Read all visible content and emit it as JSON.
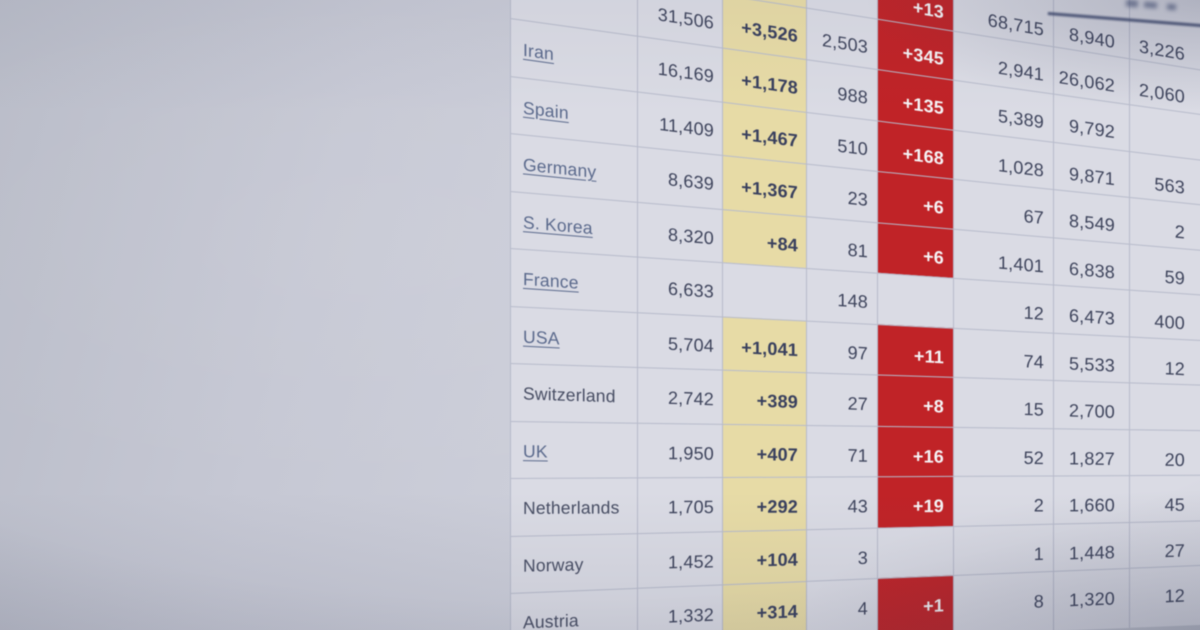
{
  "colors": {
    "page_bg": "#c6c8d3",
    "cell_bg": "#dadbe4",
    "grid": "#b7bbcb",
    "text": "#3e445c",
    "country_text": "#474d63",
    "link": "#5a698c",
    "highlight_yellow": "#e7dba6",
    "highlight_red": "#c02327",
    "red_text": "#f6f4f6"
  },
  "table": {
    "rows": [
      {
        "country": "",
        "total": "",
        "new_cases": "",
        "deaths": "",
        "new_deaths": "+13",
        "recovered": "68,715",
        "active": "8,940",
        "serious": "3,226",
        "new_cases_highlighted": true,
        "country_is_link": false
      },
      {
        "country": "",
        "total": "31,506",
        "new_cases": "+3,526",
        "deaths": "2,503",
        "new_deaths": "+345",
        "recovered": "2,941",
        "active": "26,062",
        "serious": "2,060",
        "new_cases_highlighted": true,
        "country_is_link": false
      },
      {
        "country": "Iran",
        "total": "16,169",
        "new_cases": "+1,178",
        "deaths": "988",
        "new_deaths": "+135",
        "recovered": "5,389",
        "active": "9,792",
        "serious": "",
        "new_cases_highlighted": true,
        "country_is_link": true
      },
      {
        "country": "Spain",
        "total": "11,409",
        "new_cases": "+1,467",
        "deaths": "510",
        "new_deaths": "+168",
        "recovered": "1,028",
        "active": "9,871",
        "serious": "563",
        "new_cases_highlighted": true,
        "country_is_link": true
      },
      {
        "country": "Germany",
        "total": "8,639",
        "new_cases": "+1,367",
        "deaths": "23",
        "new_deaths": "+6",
        "recovered": "67",
        "active": "8,549",
        "serious": "2",
        "new_cases_highlighted": true,
        "country_is_link": true
      },
      {
        "country": "S. Korea",
        "total": "8,320",
        "new_cases": "+84",
        "deaths": "81",
        "new_deaths": "+6",
        "recovered": "1,401",
        "active": "6,838",
        "serious": "59",
        "new_cases_highlighted": true,
        "country_is_link": true
      },
      {
        "country": "France",
        "total": "6,633",
        "new_cases": "",
        "deaths": "148",
        "new_deaths": "",
        "recovered": "12",
        "active": "6,473",
        "serious": "400",
        "new_cases_highlighted": false,
        "country_is_link": true
      },
      {
        "country": "USA",
        "total": "5,704",
        "new_cases": "+1,041",
        "deaths": "97",
        "new_deaths": "+11",
        "recovered": "74",
        "active": "5,533",
        "serious": "12",
        "new_cases_highlighted": true,
        "country_is_link": true
      },
      {
        "country": "Switzerland",
        "total": "2,742",
        "new_cases": "+389",
        "deaths": "27",
        "new_deaths": "+8",
        "recovered": "15",
        "active": "2,700",
        "serious": "",
        "new_cases_highlighted": true,
        "country_is_link": false
      },
      {
        "country": "UK",
        "total": "1,950",
        "new_cases": "+407",
        "deaths": "71",
        "new_deaths": "+16",
        "recovered": "52",
        "active": "1,827",
        "serious": "20",
        "new_cases_highlighted": true,
        "country_is_link": true
      },
      {
        "country": "Netherlands",
        "total": "1,705",
        "new_cases": "+292",
        "deaths": "43",
        "new_deaths": "+19",
        "recovered": "2",
        "active": "1,660",
        "serious": "45",
        "new_cases_highlighted": true,
        "country_is_link": false
      },
      {
        "country": "Norway",
        "total": "1,452",
        "new_cases": "+104",
        "deaths": "3",
        "new_deaths": "",
        "recovered": "1",
        "active": "1,448",
        "serious": "27",
        "new_cases_highlighted": true,
        "country_is_link": false
      },
      {
        "country": "Austria",
        "total": "1,332",
        "new_cases": "+314",
        "deaths": "4",
        "new_deaths": "+1",
        "recovered": "8",
        "active": "1,320",
        "serious": "12",
        "new_cases_highlighted": true,
        "country_is_link": false
      }
    ]
  }
}
